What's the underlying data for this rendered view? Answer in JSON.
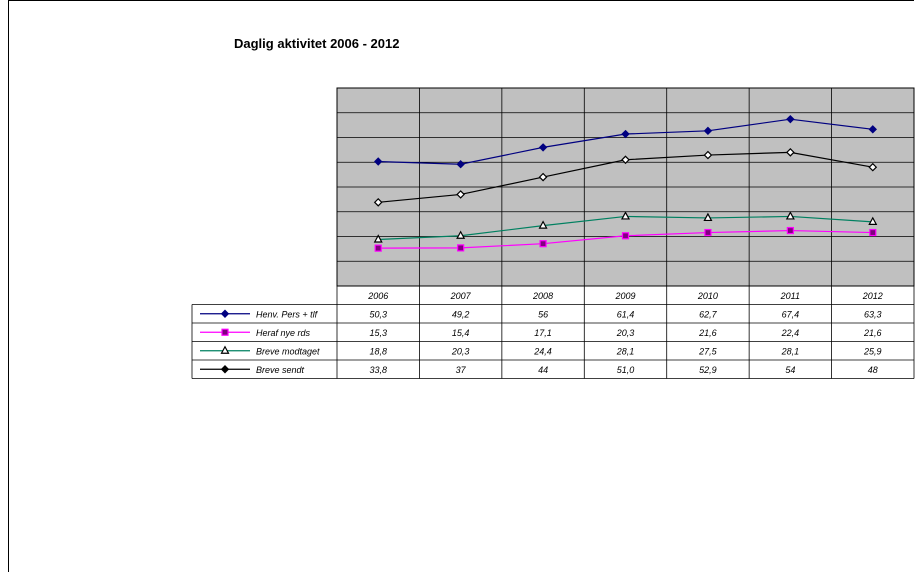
{
  "chart_data": {
    "type": "line",
    "title": "Daglig aktivitet 2006 - 2012",
    "categories": [
      "2006",
      "2007",
      "2008",
      "2009",
      "2010",
      "2011",
      "2012"
    ],
    "ylim": [
      0,
      80
    ],
    "grid": true,
    "legend": "data table at bottom-left",
    "series": [
      {
        "name": "Henv. Pers + tlf",
        "values": [
          50.3,
          49.2,
          56,
          61.4,
          62.7,
          67.4,
          63.3
        ],
        "labels": [
          "50,3",
          "49,2",
          "56",
          "61,4",
          "62,7",
          "67,4",
          "63,3"
        ],
        "color": "#000080",
        "marker": "diamond-filled"
      },
      {
        "name": "Heraf nye rds",
        "values": [
          15.3,
          15.4,
          17.1,
          20.3,
          21.6,
          22.4,
          21.6
        ],
        "labels": [
          "15,3",
          "15,4",
          "17,1",
          "20,3",
          "21,6",
          "22,4",
          "21,6"
        ],
        "color": "#ff00ff",
        "marker": "square"
      },
      {
        "name": "Breve modtaget",
        "values": [
          18.8,
          20.3,
          24.4,
          28.1,
          27.5,
          28.1,
          25.9
        ],
        "labels": [
          "18,8",
          "20,3",
          "24,4",
          "28,1",
          "27,5",
          "28,1",
          "25,9"
        ],
        "color": "#008060",
        "marker": "triangle"
      },
      {
        "name": "Breve sendt",
        "values": [
          33.8,
          37,
          44,
          51.0,
          52.9,
          54,
          48
        ],
        "labels": [
          "33,8",
          "37",
          "44",
          "51,0",
          "52,9",
          "54",
          "48"
        ],
        "color": "#000000",
        "marker": "diamond-open"
      }
    ]
  }
}
